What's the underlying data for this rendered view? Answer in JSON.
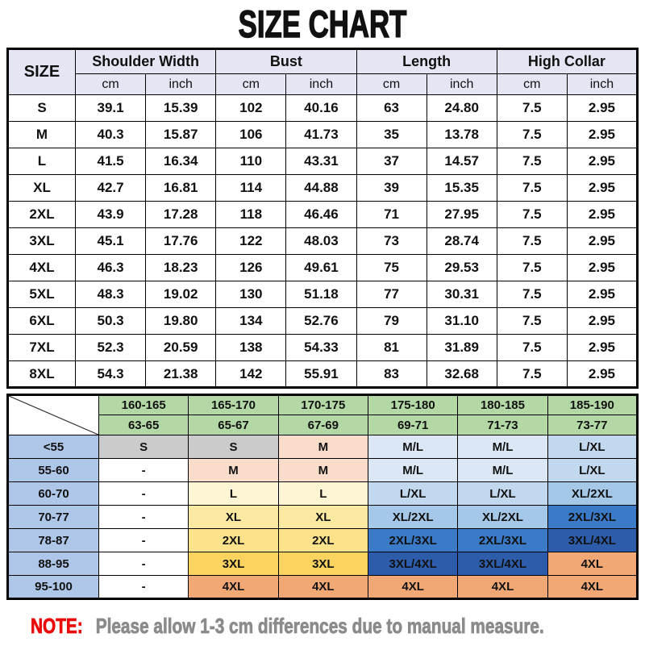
{
  "title": "SIZE CHART",
  "measurement_table": {
    "corner_header": "SIZE",
    "group_headers": [
      "Shoulder Width",
      "Bust",
      "Length",
      "High Collar"
    ],
    "unit_headers": [
      "cm",
      "inch"
    ],
    "rows": [
      {
        "size": "S",
        "values": [
          "39.1",
          "15.39",
          "102",
          "40.16",
          "63",
          "24.80",
          "7.5",
          "2.95"
        ]
      },
      {
        "size": "M",
        "values": [
          "40.3",
          "15.87",
          "106",
          "41.73",
          "35",
          "13.78",
          "7.5",
          "2.95"
        ]
      },
      {
        "size": "L",
        "values": [
          "41.5",
          "16.34",
          "110",
          "43.31",
          "37",
          "14.57",
          "7.5",
          "2.95"
        ]
      },
      {
        "size": "XL",
        "values": [
          "42.7",
          "16.81",
          "114",
          "44.88",
          "39",
          "15.35",
          "7.5",
          "2.95"
        ]
      },
      {
        "size": "2XL",
        "values": [
          "43.9",
          "17.28",
          "118",
          "46.46",
          "71",
          "27.95",
          "7.5",
          "2.95"
        ]
      },
      {
        "size": "3XL",
        "values": [
          "45.1",
          "17.76",
          "122",
          "48.03",
          "73",
          "28.74",
          "7.5",
          "2.95"
        ]
      },
      {
        "size": "4XL",
        "values": [
          "46.3",
          "18.23",
          "126",
          "49.61",
          "75",
          "29.53",
          "7.5",
          "2.95"
        ]
      },
      {
        "size": "5XL",
        "values": [
          "48.3",
          "19.02",
          "130",
          "51.18",
          "77",
          "30.31",
          "7.5",
          "2.95"
        ]
      },
      {
        "size": "6XL",
        "values": [
          "50.3",
          "19.80",
          "134",
          "52.76",
          "79",
          "31.10",
          "7.5",
          "2.95"
        ]
      },
      {
        "size": "7XL",
        "values": [
          "52.3",
          "20.59",
          "138",
          "54.33",
          "81",
          "31.89",
          "7.5",
          "2.95"
        ]
      },
      {
        "size": "8XL",
        "values": [
          "54.3",
          "21.38",
          "142",
          "55.91",
          "83",
          "32.68",
          "7.5",
          "2.95"
        ]
      }
    ]
  },
  "fit_table": {
    "height_ranges": [
      "160-165",
      "165-170",
      "170-175",
      "175-180",
      "180-185",
      "185-190"
    ],
    "weight_ranges": [
      "63-65",
      "65-67",
      "67-69",
      "69-71",
      "71-73",
      "73-77"
    ],
    "rows": [
      {
        "label": "<55",
        "cells": [
          "S",
          "S",
          "M",
          "M/L",
          "M/L",
          "L/XL"
        ]
      },
      {
        "label": "55-60",
        "cells": [
          "-",
          "M",
          "M",
          "M/L",
          "M/L",
          "L/XL"
        ]
      },
      {
        "label": "60-70",
        "cells": [
          "-",
          "L",
          "L",
          "L/XL",
          "L/XL",
          "XL/2XL"
        ]
      },
      {
        "label": "70-77",
        "cells": [
          "-",
          "XL",
          "XL",
          "XL/2XL",
          "XL/2XL",
          "2XL/3XL"
        ]
      },
      {
        "label": "78-87",
        "cells": [
          "-",
          "2XL",
          "2XL",
          "2XL/3XL",
          "2XL/3XL",
          "3XL/4XL"
        ]
      },
      {
        "label": "88-95",
        "cells": [
          "-",
          "3XL",
          "3XL",
          "3XL/4XL",
          "3XL/4XL",
          "4XL"
        ]
      },
      {
        "label": "95-100",
        "cells": [
          "-",
          "4XL",
          "4XL",
          "4XL",
          "4XL",
          "4XL"
        ]
      }
    ]
  },
  "cell_colors": {
    "S": "#cbcbcb",
    "M": "#fadcca",
    "L": "#fdf5d3",
    "XL": "#fbe9a2",
    "2XL": "#fbe28b",
    "3XL": "#fcd35e",
    "4XL": "#f2a874",
    "M/L": "#dbe7f4",
    "L/XL": "#c2d8ee",
    "XL/2XL": "#a5c8e9",
    "2XL/3XL": "#3a7ac6",
    "3XL/4XL": "#2d5caa",
    "-": "#ffffff"
  },
  "note": {
    "label": "NOTE:",
    "text": "Please allow 1-3 cm differences due to manual measure."
  },
  "colors": {
    "main_header_bg": "#e4e7f3",
    "fit_header_green": "#b3d8a6",
    "fit_label_blue": "#aec6e8",
    "note_label_color": "#ea0b0b",
    "note_text_color": "#8b8b8b",
    "border_color": "#000000"
  }
}
